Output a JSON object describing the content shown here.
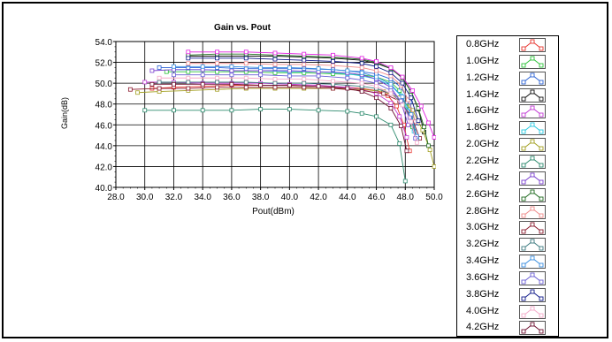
{
  "chart_data": {
    "type": "line",
    "title": "Gain vs. Pout",
    "xlabel": "Pout(dBm)",
    "ylabel": "Gain(dB)",
    "xlim": [
      28.0,
      50.0
    ],
    "ylim": [
      40.0,
      54.0
    ],
    "xticks": [
      "28.0",
      "30.0",
      "32.0",
      "34.0",
      "36.0",
      "38.0",
      "40.0",
      "42.0",
      "44.0",
      "46.0",
      "48.0",
      "50.0"
    ],
    "yticks": [
      "40.0",
      "42.0",
      "44.0",
      "46.0",
      "48.0",
      "50.0",
      "52.0",
      "54.0"
    ],
    "grid": true,
    "legend_position": "right",
    "series": [
      {
        "name": "0.8GHz",
        "color": "#e8352f",
        "x": [
          30.5,
          32,
          34,
          36,
          38,
          40,
          42,
          44,
          45,
          46,
          46.8,
          47.4,
          47.9,
          48.3
        ],
        "y": [
          49.5,
          49.6,
          49.7,
          49.8,
          49.8,
          49.8,
          49.7,
          49.6,
          49.5,
          49.3,
          48.8,
          47.8,
          46.0,
          43.5
        ]
      },
      {
        "name": "1.0GHz",
        "color": "#2ec23a",
        "x": [
          31.5,
          33,
          35,
          37,
          39,
          41,
          43,
          45,
          46,
          47,
          47.6,
          48.1,
          48.5
        ],
        "y": [
          51.1,
          51.1,
          51.1,
          51.1,
          51.0,
          51.0,
          50.9,
          50.8,
          50.6,
          50.1,
          49.3,
          47.8,
          45.8
        ]
      },
      {
        "name": "1.2GHz",
        "color": "#2c63d6",
        "x": [
          31,
          33,
          35,
          37,
          39,
          41,
          43,
          45,
          46,
          47,
          47.7,
          48.3,
          48.7
        ],
        "y": [
          51.5,
          51.5,
          51.5,
          51.4,
          51.4,
          51.4,
          51.3,
          51.1,
          50.9,
          50.4,
          49.6,
          48.2,
          46.2
        ]
      },
      {
        "name": "1.4GHz",
        "color": "#111111",
        "x": [
          33,
          35,
          37,
          39,
          41,
          43,
          45,
          46,
          47,
          47.8,
          48.4,
          48.9,
          49.3
        ],
        "y": [
          52.6,
          52.6,
          52.6,
          52.6,
          52.5,
          52.4,
          52.2,
          51.9,
          51.4,
          50.5,
          49.2,
          47.5,
          45.3
        ]
      },
      {
        "name": "1.6GHz",
        "color": "#c33ad6",
        "x": [
          30,
          32,
          34,
          36,
          38,
          40,
          42,
          44,
          45,
          46,
          47,
          47.6,
          48.1
        ],
        "y": [
          50.1,
          50.1,
          50.0,
          50.0,
          50.0,
          49.9,
          49.8,
          49.6,
          49.4,
          49.0,
          48.1,
          46.8,
          44.8
        ]
      },
      {
        "name": "1.8GHz",
        "color": "#27c9e0",
        "x": [
          32,
          34,
          36,
          38,
          40,
          42,
          44,
          45,
          46,
          47,
          47.7,
          48.2,
          48.6
        ],
        "y": [
          51.3,
          51.3,
          51.2,
          51.2,
          51.1,
          51.1,
          50.9,
          50.7,
          50.4,
          49.8,
          48.8,
          47.3,
          45.4
        ]
      },
      {
        "name": "2.0GHz",
        "color": "#a3a022",
        "x": [
          29.5,
          31,
          33,
          35,
          37,
          39,
          41,
          43,
          45,
          46.5,
          47.6,
          48.5,
          49.2,
          49.7,
          50.0
        ],
        "y": [
          49.1,
          49.2,
          49.3,
          49.4,
          49.5,
          49.5,
          49.5,
          49.5,
          49.4,
          49.2,
          48.6,
          47.4,
          45.5,
          43.6,
          42.0
        ]
      },
      {
        "name": "2.2GHz",
        "color": "#2e8b6e",
        "x": [
          30,
          32,
          34,
          36,
          38,
          40,
          42,
          44,
          45,
          46,
          47,
          47.6,
          48.0
        ],
        "y": [
          47.4,
          47.4,
          47.4,
          47.4,
          47.5,
          47.5,
          47.4,
          47.3,
          47.1,
          46.8,
          46.0,
          44.2,
          40.6
        ]
      },
      {
        "name": "2.4GHz",
        "color": "#7a3fd0",
        "x": [
          30.5,
          32,
          34,
          36,
          38,
          40,
          42,
          44,
          45,
          46,
          47,
          47.7,
          48.2
        ],
        "y": [
          51.2,
          51.3,
          51.3,
          51.2,
          51.2,
          51.2,
          51.1,
          51.0,
          50.8,
          50.4,
          49.6,
          48.2,
          46.0
        ]
      },
      {
        "name": "2.6GHz",
        "color": "#1f6b1f",
        "x": [
          33,
          35,
          37,
          39,
          41,
          43,
          45,
          46,
          47,
          47.8,
          48.4,
          48.9,
          49.3,
          49.6
        ],
        "y": [
          52.7,
          52.8,
          52.8,
          52.7,
          52.6,
          52.5,
          52.3,
          52.0,
          51.4,
          50.5,
          49.2,
          47.6,
          45.8,
          44.0
        ]
      },
      {
        "name": "2.8GHz",
        "color": "#f08a8a",
        "x": [
          33,
          35,
          37,
          39,
          41,
          43,
          45,
          46,
          47,
          47.7,
          48.2,
          48.7
        ],
        "y": [
          51.9,
          51.9,
          51.9,
          51.8,
          51.8,
          51.7,
          51.5,
          51.2,
          50.7,
          49.8,
          48.4,
          46.3
        ]
      },
      {
        "name": "3.0GHz",
        "color": "#8b1a2e",
        "x": [
          29,
          31,
          33,
          35,
          37,
          39,
          41,
          43,
          45,
          46.5,
          47.6,
          48.4,
          49.0
        ],
        "y": [
          49.4,
          49.5,
          49.5,
          49.6,
          49.6,
          49.6,
          49.6,
          49.5,
          49.3,
          49.0,
          48.3,
          46.9,
          44.7
        ]
      },
      {
        "name": "3.2GHz",
        "color": "#3d7b80",
        "x": [
          31,
          33,
          35,
          37,
          39,
          41,
          43,
          45,
          46,
          47,
          47.8,
          48.4,
          48.8
        ],
        "y": [
          50.1,
          50.1,
          50.1,
          50.1,
          50.0,
          50.0,
          49.9,
          49.7,
          49.5,
          49.0,
          48.1,
          46.6,
          44.6
        ]
      },
      {
        "name": "3.4GHz",
        "color": "#3a8fe0",
        "x": [
          32,
          34,
          36,
          38,
          40,
          42,
          44,
          45,
          46,
          47,
          47.8,
          48.4,
          48.8
        ],
        "y": [
          51.6,
          51.6,
          51.6,
          51.5,
          51.5,
          51.4,
          51.2,
          51.0,
          50.6,
          49.9,
          48.7,
          47.0,
          44.9
        ]
      },
      {
        "name": "3.6GHz",
        "color": "#6b5fd6",
        "x": [
          32,
          34,
          36,
          38,
          40,
          42,
          44,
          45,
          46,
          47,
          47.7,
          48.3,
          48.7
        ],
        "y": [
          50.8,
          50.8,
          50.8,
          50.8,
          50.7,
          50.7,
          50.5,
          50.3,
          50.0,
          49.3,
          48.3,
          46.7,
          44.7
        ]
      },
      {
        "name": "3.8GHz",
        "color": "#101a8a",
        "x": [
          33,
          35,
          37,
          39,
          41,
          43,
          45,
          46,
          47,
          47.8,
          48.4,
          48.9
        ],
        "y": [
          52.4,
          52.4,
          52.4,
          52.3,
          52.2,
          52.1,
          51.9,
          51.6,
          51.0,
          50.0,
          48.6,
          46.4
        ]
      },
      {
        "name": "4.0GHz",
        "color": "#f5a9c9",
        "x": [
          31,
          33,
          35,
          37,
          39,
          41,
          43,
          45,
          46,
          47,
          47.8,
          48.4,
          48.8
        ],
        "y": [
          50.5,
          50.5,
          50.5,
          50.5,
          50.4,
          50.4,
          50.2,
          50.0,
          49.7,
          49.0,
          47.9,
          46.3,
          44.3
        ]
      },
      {
        "name": "4.2GHz",
        "color": "#6e1030",
        "x": [
          30.5,
          32,
          34,
          36,
          38,
          40,
          42,
          44,
          45,
          46,
          47,
          47.7,
          48.1
        ],
        "y": [
          49.9,
          49.9,
          49.9,
          49.9,
          49.8,
          49.8,
          49.7,
          49.5,
          49.2,
          48.6,
          47.6,
          45.9,
          43.5
        ]
      },
      {
        "name": "",
        "color": "#e020e0",
        "x": [
          33,
          35,
          37,
          39,
          41,
          43,
          45,
          46,
          47,
          47.8,
          48.5,
          49.1,
          49.6,
          50.0
        ],
        "y": [
          53.0,
          53.0,
          53.0,
          52.9,
          52.8,
          52.7,
          52.4,
          52.1,
          51.5,
          50.6,
          49.3,
          47.8,
          46.2,
          44.8
        ]
      }
    ]
  }
}
